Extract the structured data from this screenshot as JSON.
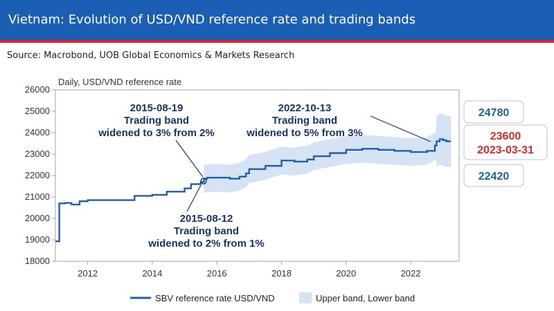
{
  "header": {
    "title": "Vietnam: Evolution of USD/VND reference rate and trading bands",
    "source": "Source: Macrobond, UOB Global Economics & Markets Research",
    "band_color": "#1b5fb5",
    "accent_color": "#e2232a"
  },
  "chart_data": {
    "type": "line",
    "ylabel": "Daily, USD/VND reference rate",
    "xlim": [
      2011.0,
      2023.5
    ],
    "ylim": [
      18000,
      26000
    ],
    "y_ticks": [
      "18000",
      "19000",
      "20000",
      "21000",
      "22000",
      "23000",
      "24000",
      "25000",
      "26000"
    ],
    "x_ticks": [
      "2012",
      "2014",
      "2016",
      "2018",
      "2020",
      "2022"
    ],
    "grid": false,
    "legend_position": "bottom",
    "series": [
      {
        "name": "SBV reference rate USD/VND",
        "color": "#1f5ea8",
        "x": [
          2011.0,
          2011.1,
          2011.12,
          2011.3,
          2011.5,
          2011.75,
          2012.0,
          2013.0,
          2013.45,
          2014.0,
          2014.45,
          2015.0,
          2015.2,
          2015.5,
          2015.6,
          2015.7,
          2016.0,
          2016.4,
          2016.7,
          2016.9,
          2017.0,
          2017.5,
          2018.0,
          2018.4,
          2018.8,
          2019.0,
          2019.5,
          2020.0,
          2020.5,
          2021.0,
          2021.5,
          2022.0,
          2022.5,
          2022.75,
          2022.8,
          2022.9,
          2023.0,
          2023.1,
          2023.25
        ],
        "values": [
          18930,
          18930,
          20700,
          20720,
          20650,
          20800,
          20850,
          20850,
          21050,
          21100,
          21250,
          21400,
          21600,
          21700,
          21850,
          21900,
          21900,
          21850,
          21950,
          22100,
          22300,
          22450,
          22700,
          22650,
          22750,
          22900,
          23050,
          23200,
          23250,
          23200,
          23150,
          23100,
          23150,
          23400,
          23600,
          23700,
          23650,
          23600,
          23600
        ]
      }
    ],
    "band": {
      "name": "Upper band, Lower band",
      "color": "#d6e3f4",
      "x": [
        2015.6,
        2016.0,
        2016.4,
        2016.7,
        2016.9,
        2017.0,
        2017.5,
        2018.0,
        2018.4,
        2018.8,
        2019.0,
        2019.5,
        2020.0,
        2020.5,
        2021.0,
        2021.5,
        2022.0,
        2022.5,
        2022.78,
        2022.8,
        2022.9,
        2023.0,
        2023.1,
        2023.25
      ],
      "upper": [
        22500,
        22550,
        22500,
        22600,
        22750,
        22950,
        23100,
        23350,
        23300,
        23400,
        23550,
        23700,
        23850,
        23900,
        23850,
        23800,
        23750,
        23800,
        24000,
        24780,
        24900,
        24850,
        24800,
        24780
      ],
      "lower": [
        21200,
        21250,
        21200,
        21300,
        21450,
        21650,
        21800,
        22050,
        22000,
        22100,
        22250,
        22400,
        22550,
        22600,
        22550,
        22500,
        22450,
        22500,
        22750,
        22420,
        22500,
        22450,
        22420,
        22420
      ]
    },
    "annotations": [
      {
        "lines": [
          "2015-08-19",
          "Trading band",
          "widened to 3% from 2%"
        ]
      },
      {
        "lines": [
          "2022-10-13",
          "Trading band",
          "widened to 5% from 3%"
        ]
      },
      {
        "lines": [
          "2015-08-12",
          "Trading band",
          "widened to 2% from 1%"
        ]
      }
    ],
    "end_labels": {
      "upper": "24780",
      "mid_value": "23600",
      "mid_date": "2023-03-31",
      "lower": "22420",
      "upper_color": "#1f5ea8",
      "mid_color": "#d62b2b",
      "lower_color": "#1f5ea8"
    }
  }
}
